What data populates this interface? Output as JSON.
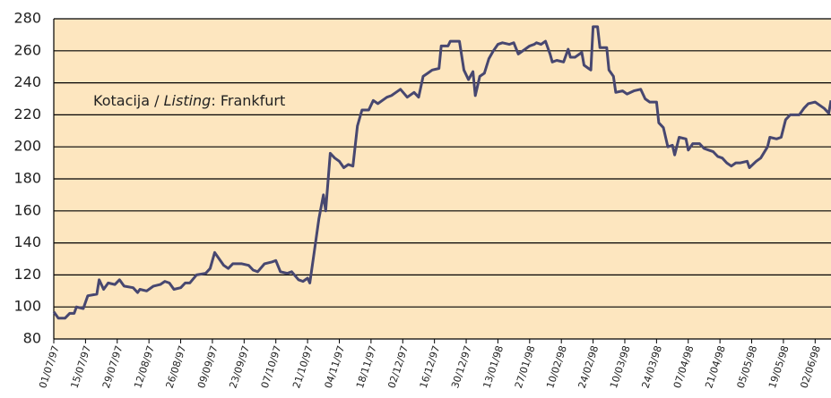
{
  "chart_data": {
    "type": "line",
    "annotation_parts": [
      "Kotacija / ",
      "Listing",
      ": Frankfurt"
    ],
    "xlim": [
      "01/07/97",
      "09/06/98"
    ],
    "xticks": [
      "01/07/97",
      "15/07/97",
      "29/07/97",
      "12/08/97",
      "26/08/97",
      "09/09/97",
      "23/09/97",
      "07/10/97",
      "21/10/97",
      "04/11/97",
      "18/11/97",
      "02/12/97",
      "16/12/97",
      "30/12/97",
      "13/01/98",
      "27/01/98",
      "10/02/98",
      "24/02/98",
      "10/03/98",
      "24/03/98",
      "07/04/98",
      "21/04/98",
      "05/05/98",
      "19/05/98",
      "02/06/98"
    ],
    "ylim": [
      80,
      280
    ],
    "yticks": [
      80,
      100,
      120,
      140,
      160,
      180,
      200,
      220,
      240,
      260,
      280
    ],
    "grid": true,
    "series": [
      {
        "color": "#474770",
        "x": [
          "01/07/97",
          "03/07/97",
          "06/07/97",
          "08/07/97",
          "10/07/97",
          "11/07/97",
          "14/07/97",
          "16/07/97",
          "20/07/97",
          "21/07/97",
          "23/07/97",
          "25/07/97",
          "28/07/97",
          "30/07/97",
          "01/08/97",
          "05/08/97",
          "07/08/97",
          "08/08/97",
          "11/08/97",
          "14/08/97",
          "17/08/97",
          "19/08/97",
          "21/08/97",
          "23/08/97",
          "26/08/97",
          "28/08/97",
          "30/08/97",
          "02/09/97",
          "06/09/97",
          "08/09/97",
          "10/09/97",
          "12/09/97",
          "14/09/97",
          "16/09/97",
          "18/09/97",
          "22/09/97",
          "25/09/97",
          "27/09/97",
          "29/09/97",
          "02/10/97",
          "05/10/97",
          "07/10/97",
          "09/10/97",
          "12/10/97",
          "14/10/97",
          "17/10/97",
          "19/10/97",
          "21/10/97",
          "22/10/97",
          "24/10/97",
          "26/10/97",
          "28/10/97",
          "29/10/97",
          "31/10/97",
          "02/11/97",
          "04/11/97",
          "06/11/97",
          "08/11/97",
          "10/11/97",
          "12/11/97",
          "14/11/97",
          "17/11/97",
          "19/11/97",
          "21/11/97",
          "23/11/97",
          "25/11/97",
          "27/11/97",
          "29/11/97",
          "01/12/97",
          "04/12/97",
          "07/12/97",
          "09/12/97",
          "11/12/97",
          "13/12/97",
          "15/12/97",
          "18/12/97",
          "19/12/97",
          "22/12/97",
          "23/12/97",
          "27/12/97",
          "29/12/97",
          "31/12/97",
          "02/01/98",
          "03/01/98",
          "05/01/98",
          "07/01/98",
          "09/01/98",
          "11/01/98",
          "13/01/98",
          "15/01/98",
          "18/01/98",
          "20/01/98",
          "22/01/98",
          "25/01/98",
          "27/01/98",
          "29/01/98",
          "30/01/98",
          "01/02/98",
          "03/02/98",
          "05/02/98",
          "06/02/98",
          "08/02/98",
          "11/02/98",
          "13/02/98",
          "14/02/98",
          "16/02/98",
          "19/02/98",
          "20/02/98",
          "22/02/98",
          "23/02/98",
          "24/02/98",
          "26/02/98",
          "27/02/98",
          "02/03/98",
          "03/03/98",
          "05/03/98",
          "06/03/98",
          "09/03/98",
          "11/03/98",
          "14/03/98",
          "17/03/98",
          "19/03/98",
          "21/03/98",
          "24/03/98",
          "25/03/98",
          "27/03/98",
          "29/03/98",
          "31/03/98",
          "01/04/98",
          "03/04/98",
          "06/04/98",
          "07/04/98",
          "09/04/98",
          "12/04/98",
          "14/04/98",
          "16/04/98",
          "18/04/98",
          "20/04/98",
          "22/04/98",
          "24/04/98",
          "26/04/98",
          "28/04/98",
          "30/04/98",
          "03/05/98",
          "04/05/98",
          "07/05/98",
          "09/05/98",
          "12/05/98",
          "13/05/98",
          "16/05/98",
          "18/05/98",
          "20/05/98",
          "22/05/98",
          "26/05/98",
          "28/05/98",
          "30/05/98",
          "02/06/98",
          "04/06/98",
          "06/06/98",
          "08/06/98",
          "09/06/98"
        ],
        "values": [
          97,
          93,
          93,
          96,
          96,
          100,
          99,
          107,
          108,
          117,
          111,
          115,
          114,
          117,
          113,
          112,
          109,
          111,
          110,
          113,
          114,
          116,
          115,
          111,
          112,
          115,
          115,
          120,
          121,
          124,
          134,
          130,
          126,
          124,
          127,
          127,
          126,
          123,
          122,
          127,
          128,
          129,
          122,
          121,
          122,
          117,
          116,
          118,
          115,
          135,
          155,
          170,
          160,
          196,
          193,
          191,
          187,
          189,
          188,
          213,
          223,
          223,
          229,
          227,
          229,
          231,
          232,
          234,
          236,
          231,
          234,
          231,
          244,
          246,
          248,
          249,
          263,
          263,
          266,
          266,
          248,
          242,
          247,
          232,
          244,
          246,
          255,
          260,
          264,
          265,
          264,
          265,
          258,
          261,
          263,
          264,
          265,
          264,
          266,
          258,
          253,
          254,
          253,
          261,
          256,
          256,
          259,
          251,
          249,
          248,
          275,
          275,
          262,
          262,
          248,
          244,
          234,
          235,
          233,
          235,
          236,
          230,
          228,
          228,
          215,
          212,
          200,
          201,
          195,
          206,
          205,
          198,
          202,
          202,
          199,
          198,
          197,
          194,
          193,
          190,
          188,
          190,
          190,
          191,
          187,
          191,
          193,
          200,
          206,
          205,
          206,
          217,
          220,
          220,
          224,
          227,
          228,
          226,
          224,
          221,
          229
        ]
      }
    ]
  }
}
